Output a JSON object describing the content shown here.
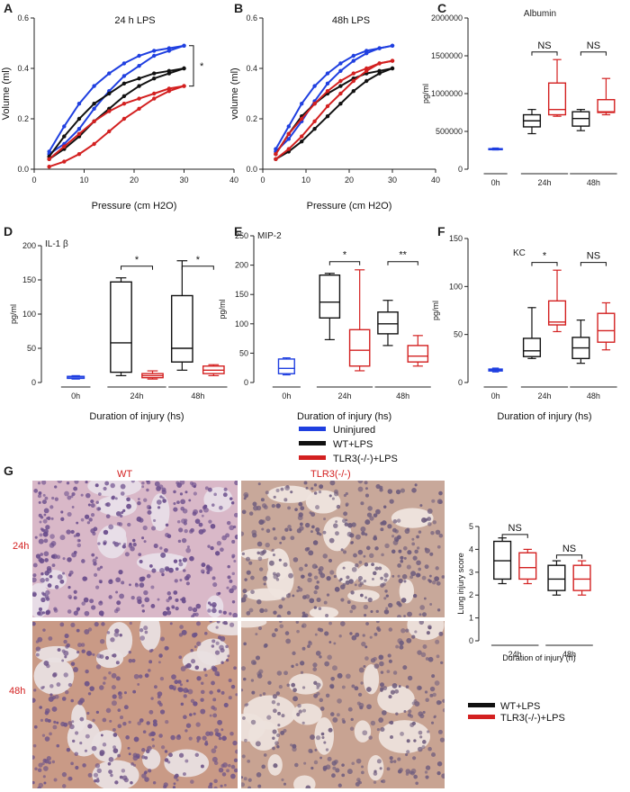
{
  "colors": {
    "uninjured": "#1f3fe0",
    "wt": "#111111",
    "tlr3": "#d32020",
    "red_label": "#d32020"
  },
  "panel_letters": [
    "A",
    "B",
    "C",
    "D",
    "E",
    "F",
    "G"
  ],
  "legend_main": {
    "title": "Duration of injury (hs)",
    "items": [
      "Uninjured",
      "WT+LPS",
      "TLR3(-/-)+LPS"
    ]
  },
  "legend_g": {
    "items": [
      "WT+LPS",
      "TLR3(-/-)+LPS"
    ]
  },
  "histology": {
    "col_labels": [
      "WT",
      "TLR3(-/-)"
    ],
    "row_labels": [
      "24h",
      "48h"
    ],
    "tiles": [
      {
        "id": "wt-24h",
        "bg": "#e8dde8",
        "cell": "#6a4d8c",
        "tint": "#d9b8c8",
        "density": 0.62
      },
      {
        "id": "tlr3-24h",
        "bg": "#efe4de",
        "cell": "#6b5a7c",
        "tint": "#c8a89a",
        "density": 0.55
      },
      {
        "id": "wt-48h",
        "bg": "#e9dfe0",
        "cell": "#6e5488",
        "tint": "#c99a86",
        "density": 0.5
      },
      {
        "id": "tlr3-48h",
        "bg": "#ede2dc",
        "cell": "#6f5d7e",
        "tint": "#c8a392",
        "density": 0.42
      }
    ]
  },
  "chart_data": [
    {
      "id": "A",
      "type": "line",
      "title": "24 h LPS",
      "xlabel": "Pressure (cm H2O)",
      "ylabel": "Volume (ml)",
      "xlim": [
        0,
        40
      ],
      "ylim": [
        0,
        0.6
      ],
      "xticks": [
        0,
        10,
        20,
        30,
        40
      ],
      "yticks": [
        0,
        0.2,
        0.4,
        0.6
      ],
      "xtick_labels": [
        "0",
        "10",
        "20",
        "30",
        "40"
      ],
      "ytick_labels": [
        "0.0",
        "0.2",
        "0.4",
        "0.6"
      ],
      "annotation": "*",
      "series": [
        {
          "color_key": "uninjured",
          "inflation": [
            [
              3,
              0.07
            ],
            [
              6,
              0.17
            ],
            [
              9,
              0.26
            ],
            [
              12,
              0.33
            ],
            [
              15,
              0.38
            ],
            [
              18,
              0.42
            ],
            [
              21,
              0.45
            ],
            [
              24,
              0.47
            ],
            [
              27,
              0.48
            ],
            [
              30,
              0.49
            ]
          ],
          "deflation": [
            [
              3,
              0.06
            ],
            [
              6,
              0.1
            ],
            [
              9,
              0.16
            ],
            [
              12,
              0.24
            ],
            [
              15,
              0.31
            ],
            [
              18,
              0.37
            ],
            [
              21,
              0.41
            ],
            [
              24,
              0.45
            ],
            [
              27,
              0.47
            ],
            [
              30,
              0.49
            ]
          ]
        },
        {
          "color_key": "wt",
          "inflation": [
            [
              3,
              0.05
            ],
            [
              6,
              0.13
            ],
            [
              9,
              0.2
            ],
            [
              12,
              0.26
            ],
            [
              15,
              0.3
            ],
            [
              18,
              0.34
            ],
            [
              21,
              0.36
            ],
            [
              24,
              0.38
            ],
            [
              27,
              0.39
            ],
            [
              30,
              0.4
            ]
          ],
          "deflation": [
            [
              3,
              0.04
            ],
            [
              6,
              0.08
            ],
            [
              9,
              0.13
            ],
            [
              12,
              0.19
            ],
            [
              15,
              0.24
            ],
            [
              18,
              0.29
            ],
            [
              21,
              0.33
            ],
            [
              24,
              0.36
            ],
            [
              27,
              0.38
            ],
            [
              30,
              0.4
            ]
          ]
        },
        {
          "color_key": "tlr3",
          "inflation": [
            [
              3,
              0.04
            ],
            [
              6,
              0.09
            ],
            [
              9,
              0.14
            ],
            [
              12,
              0.19
            ],
            [
              15,
              0.23
            ],
            [
              18,
              0.26
            ],
            [
              21,
              0.28
            ],
            [
              24,
              0.3
            ],
            [
              27,
              0.32
            ],
            [
              30,
              0.33
            ]
          ],
          "deflation": [
            [
              3,
              0.01
            ],
            [
              6,
              0.03
            ],
            [
              9,
              0.06
            ],
            [
              12,
              0.1
            ],
            [
              15,
              0.15
            ],
            [
              18,
              0.2
            ],
            [
              21,
              0.24
            ],
            [
              24,
              0.28
            ],
            [
              27,
              0.31
            ],
            [
              30,
              0.33
            ]
          ]
        }
      ]
    },
    {
      "id": "B",
      "type": "line",
      "title": "48h LPS",
      "xlabel": "Pressure (cm H2O)",
      "ylabel": "volume (ml)",
      "xlim": [
        0,
        40
      ],
      "ylim": [
        0,
        0.6
      ],
      "xticks": [
        0,
        10,
        20,
        30,
        40
      ],
      "yticks": [
        0,
        0.2,
        0.4,
        0.6
      ],
      "xtick_labels": [
        "0",
        "10",
        "20",
        "30",
        "40"
      ],
      "ytick_labels": [
        "0.0",
        "0.2",
        "0.4",
        "0.6"
      ],
      "series": [
        {
          "color_key": "uninjured",
          "inflation": [
            [
              3,
              0.08
            ],
            [
              6,
              0.17
            ],
            [
              9,
              0.26
            ],
            [
              12,
              0.33
            ],
            [
              15,
              0.38
            ],
            [
              18,
              0.42
            ],
            [
              21,
              0.45
            ],
            [
              24,
              0.47
            ],
            [
              27,
              0.48
            ],
            [
              30,
              0.49
            ]
          ],
          "deflation": [
            [
              3,
              0.07
            ],
            [
              6,
              0.12
            ],
            [
              9,
              0.19
            ],
            [
              12,
              0.27
            ],
            [
              15,
              0.34
            ],
            [
              18,
              0.39
            ],
            [
              21,
              0.43
            ],
            [
              24,
              0.46
            ],
            [
              27,
              0.48
            ],
            [
              30,
              0.49
            ]
          ]
        },
        {
          "color_key": "wt",
          "inflation": [
            [
              3,
              0.06
            ],
            [
              6,
              0.14
            ],
            [
              9,
              0.21
            ],
            [
              12,
              0.26
            ],
            [
              15,
              0.3
            ],
            [
              18,
              0.33
            ],
            [
              21,
              0.36
            ],
            [
              24,
              0.38
            ],
            [
              27,
              0.39
            ],
            [
              30,
              0.4
            ]
          ],
          "deflation": [
            [
              3,
              0.04
            ],
            [
              6,
              0.07
            ],
            [
              9,
              0.11
            ],
            [
              12,
              0.16
            ],
            [
              15,
              0.21
            ],
            [
              18,
              0.26
            ],
            [
              21,
              0.31
            ],
            [
              24,
              0.35
            ],
            [
              27,
              0.38
            ],
            [
              30,
              0.4
            ]
          ]
        },
        {
          "color_key": "tlr3",
          "inflation": [
            [
              3,
              0.06
            ],
            [
              6,
              0.14
            ],
            [
              9,
              0.2
            ],
            [
              12,
              0.26
            ],
            [
              15,
              0.31
            ],
            [
              18,
              0.35
            ],
            [
              21,
              0.38
            ],
            [
              24,
              0.4
            ],
            [
              27,
              0.42
            ],
            [
              30,
              0.43
            ]
          ],
          "deflation": [
            [
              3,
              0.04
            ],
            [
              6,
              0.08
            ],
            [
              9,
              0.13
            ],
            [
              12,
              0.19
            ],
            [
              15,
              0.25
            ],
            [
              18,
              0.3
            ],
            [
              21,
              0.35
            ],
            [
              24,
              0.39
            ],
            [
              27,
              0.42
            ],
            [
              30,
              0.43
            ]
          ]
        }
      ]
    },
    {
      "id": "C",
      "type": "box",
      "title": "Albumin",
      "ylabel": "pg/ml",
      "ylim": [
        0,
        2000000
      ],
      "yticks": [
        0,
        500000,
        1000000,
        1500000,
        2000000
      ],
      "ytick_labels": [
        "0",
        "500000",
        "1000000",
        "1500000",
        "2000000"
      ],
      "group_labels": [
        "0h",
        "24h",
        "48h"
      ],
      "boxes": [
        {
          "group": 0,
          "color_key": "uninjured",
          "min": 255000,
          "q1": 258000,
          "median": 265000,
          "q3": 272000,
          "max": 280000
        },
        {
          "group": 1,
          "color_key": "wt",
          "min": 470000,
          "q1": 560000,
          "median": 640000,
          "q3": 720000,
          "max": 790000
        },
        {
          "group": 1,
          "color_key": "tlr3",
          "min": 700000,
          "q1": 720000,
          "median": 790000,
          "q3": 1140000,
          "max": 1450000
        },
        {
          "group": 2,
          "color_key": "wt",
          "min": 510000,
          "q1": 570000,
          "median": 670000,
          "q3": 760000,
          "max": 790000
        },
        {
          "group": 2,
          "color_key": "tlr3",
          "min": 720000,
          "q1": 750000,
          "median": 760000,
          "q3": 920000,
          "max": 1200000
        }
      ],
      "sig": [
        {
          "group": 1,
          "label": "NS",
          "y": 1550000
        },
        {
          "group": 2,
          "label": "NS",
          "y": 1550000
        }
      ]
    },
    {
      "id": "D",
      "type": "box",
      "title": "IL-1 β",
      "ylabel": "pg/ml",
      "xlabel": "Duration of injury (hs)",
      "ylim": [
        0,
        200
      ],
      "yticks": [
        0,
        50,
        100,
        150,
        200
      ],
      "ytick_labels": [
        "0",
        "50",
        "100",
        "150",
        "200"
      ],
      "group_labels": [
        "0h",
        "24h",
        "48h"
      ],
      "boxes": [
        {
          "group": 0,
          "color_key": "uninjured",
          "min": 5,
          "q1": 6,
          "median": 8,
          "q3": 9,
          "max": 10
        },
        {
          "group": 1,
          "color_key": "wt",
          "min": 10,
          "q1": 15,
          "median": 58,
          "q3": 147,
          "max": 153
        },
        {
          "group": 1,
          "color_key": "tlr3",
          "min": 5,
          "q1": 7,
          "median": 10,
          "q3": 13,
          "max": 17
        },
        {
          "group": 2,
          "color_key": "wt",
          "min": 18,
          "q1": 30,
          "median": 50,
          "q3": 127,
          "max": 178
        },
        {
          "group": 2,
          "color_key": "tlr3",
          "min": 10,
          "q1": 13,
          "median": 18,
          "q3": 24,
          "max": 26
        }
      ],
      "sig": [
        {
          "group": 1,
          "label": "*",
          "y": 170
        },
        {
          "group": 2,
          "label": "*",
          "y": 170
        }
      ]
    },
    {
      "id": "E",
      "type": "box",
      "title": "MIP-2",
      "ylabel": "pg/ml",
      "ylim": [
        0,
        250
      ],
      "yticks": [
        0,
        50,
        100,
        150,
        200,
        250
      ],
      "ytick_labels": [
        "0",
        "50",
        "100",
        "150",
        "200",
        "250"
      ],
      "group_labels": [
        "0h",
        "24h",
        "48h"
      ],
      "boxes": [
        {
          "group": 0,
          "color_key": "uninjured",
          "min": 13,
          "q1": 15,
          "median": 24,
          "q3": 40,
          "max": 42
        },
        {
          "group": 1,
          "color_key": "wt",
          "min": 73,
          "q1": 110,
          "median": 137,
          "q3": 183,
          "max": 186
        },
        {
          "group": 1,
          "color_key": "tlr3",
          "min": 20,
          "q1": 28,
          "median": 55,
          "q3": 90,
          "max": 192
        },
        {
          "group": 2,
          "color_key": "wt",
          "min": 63,
          "q1": 83,
          "median": 100,
          "q3": 120,
          "max": 140
        },
        {
          "group": 2,
          "color_key": "tlr3",
          "min": 28,
          "q1": 35,
          "median": 45,
          "q3": 63,
          "max": 80
        }
      ],
      "sig": [
        {
          "group": 1,
          "label": "*",
          "y": 206
        },
        {
          "group": 2,
          "label": "**",
          "y": 206
        }
      ]
    },
    {
      "id": "F",
      "type": "box",
      "title": "KC",
      "ylabel": "pg/ml",
      "xlabel": "Duration of injury (hs)",
      "ylim": [
        0,
        150
      ],
      "yticks": [
        0,
        50,
        100,
        150
      ],
      "ytick_labels": [
        "0",
        "50",
        "100",
        "150"
      ],
      "group_labels": [
        "0h",
        "24h",
        "48h"
      ],
      "boxes": [
        {
          "group": 0,
          "color_key": "uninjured",
          "min": 11,
          "q1": 12,
          "median": 13,
          "q3": 14,
          "max": 15
        },
        {
          "group": 1,
          "color_key": "wt",
          "min": 25,
          "q1": 27,
          "median": 33,
          "q3": 46,
          "max": 78
        },
        {
          "group": 1,
          "color_key": "tlr3",
          "min": 53,
          "q1": 60,
          "median": 63,
          "q3": 85,
          "max": 117
        },
        {
          "group": 2,
          "color_key": "wt",
          "min": 20,
          "q1": 25,
          "median": 36,
          "q3": 47,
          "max": 65
        },
        {
          "group": 2,
          "color_key": "tlr3",
          "min": 34,
          "q1": 42,
          "median": 54,
          "q3": 72,
          "max": 83
        }
      ],
      "sig": [
        {
          "group": 1,
          "label": "*",
          "y": 125
        },
        {
          "group": 2,
          "label": "NS",
          "y": 125
        }
      ]
    },
    {
      "id": "G",
      "type": "box",
      "ylabel": "Lung injury score",
      "xlabel": "Duration of injury (h)",
      "ylim": [
        0,
        5
      ],
      "yticks": [
        0,
        1,
        2,
        3,
        4,
        5
      ],
      "ytick_labels": [
        "0",
        "1",
        "2",
        "3",
        "4",
        "5"
      ],
      "group_labels": [
        "24h",
        "48h"
      ],
      "boxes": [
        {
          "group": 0,
          "color_key": "wt",
          "min": 2.5,
          "q1": 2.7,
          "median": 3.5,
          "q3": 4.35,
          "max": 4.5
        },
        {
          "group": 0,
          "color_key": "tlr3",
          "min": 2.5,
          "q1": 2.7,
          "median": 3.2,
          "q3": 3.85,
          "max": 4.0
        },
        {
          "group": 1,
          "color_key": "wt",
          "min": 2.0,
          "q1": 2.2,
          "median": 2.7,
          "q3": 3.3,
          "max": 3.5
        },
        {
          "group": 1,
          "color_key": "tlr3",
          "min": 2.0,
          "q1": 2.2,
          "median": 2.7,
          "q3": 3.3,
          "max": 3.5
        }
      ],
      "sig": [
        {
          "group": 0,
          "label": "NS",
          "y": 4.65
        },
        {
          "group": 1,
          "label": "NS",
          "y": 3.75
        }
      ]
    }
  ]
}
